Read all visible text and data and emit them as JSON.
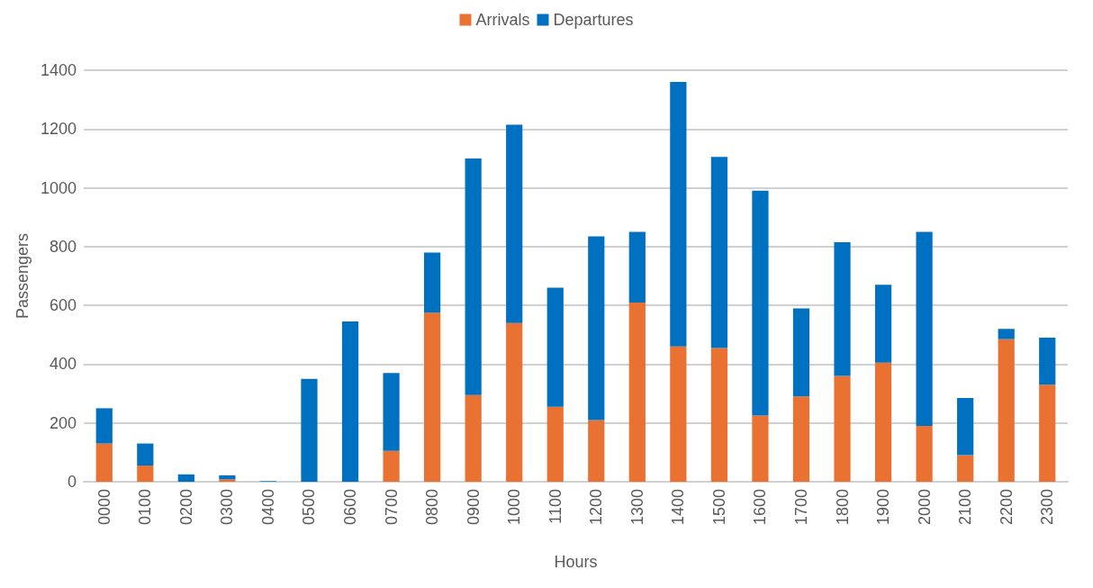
{
  "chart_data": {
    "type": "bar",
    "stacked": true,
    "xlabel": "Hours",
    "ylabel": "Passengers",
    "categories": [
      "0000",
      "0100",
      "0200",
      "0300",
      "0400",
      "0500",
      "0600",
      "0700",
      "0800",
      "0900",
      "1000",
      "1100",
      "1200",
      "1300",
      "1400",
      "1500",
      "1600",
      "1700",
      "1800",
      "1900",
      "2000",
      "2100",
      "2200",
      "2300"
    ],
    "series": [
      {
        "name": "Arrivals",
        "color": "#e97132",
        "values": [
          130,
          55,
          0,
          8,
          0,
          0,
          0,
          105,
          575,
          295,
          540,
          255,
          210,
          610,
          460,
          455,
          225,
          290,
          360,
          405,
          190,
          90,
          485,
          330
        ]
      },
      {
        "name": "Departures",
        "color": "#0070c0",
        "values": [
          120,
          75,
          25,
          14,
          2,
          350,
          545,
          265,
          205,
          805,
          675,
          405,
          625,
          240,
          900,
          650,
          765,
          300,
          455,
          265,
          660,
          195,
          35,
          160
        ]
      }
    ],
    "ylim": [
      0,
      1400
    ],
    "yticks": [
      0,
      200,
      400,
      600,
      800,
      1000,
      1200,
      1400
    ],
    "grid": "y",
    "legend": "top"
  }
}
